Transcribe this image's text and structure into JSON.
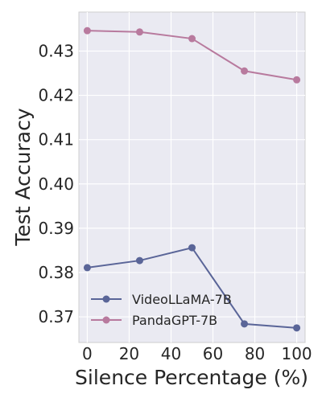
{
  "chart_data": {
    "type": "line",
    "title": "",
    "xlabel": "Silence Percentage (%)",
    "ylabel": "Test Accuracy",
    "x": [
      0,
      25,
      50,
      75,
      100
    ],
    "xticks": [
      "0",
      "20",
      "40",
      "60",
      "80",
      "100"
    ],
    "yticks": [
      "0.37",
      "0.38",
      "0.39",
      "0.40",
      "0.41",
      "0.42",
      "0.43"
    ],
    "xlim": [
      -4,
      104
    ],
    "ylim": [
      0.3642,
      0.4388
    ],
    "grid": true,
    "legend": {
      "placement": "lower-left",
      "entries": [
        "VideoLLaMA-7B",
        "PandaGPT-7B"
      ]
    },
    "series": [
      {
        "name": "VideoLLaMA-7B",
        "color": "#5a6598",
        "values": [
          0.3811,
          0.3827,
          0.3856,
          0.3684,
          0.3675
        ]
      },
      {
        "name": "PandaGPT-7B",
        "color": "#b87a9e",
        "values": [
          0.4346,
          0.4343,
          0.4328,
          0.4255,
          0.4235
        ]
      }
    ]
  }
}
